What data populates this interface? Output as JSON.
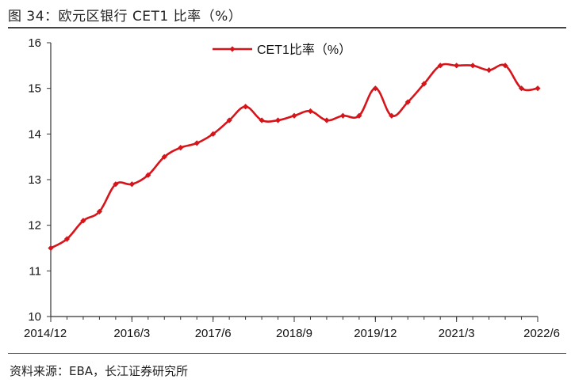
{
  "figure": {
    "title": "图 34：欧元区银行 CET1 比率（%）",
    "source": "资料来源：EBA，长江证券研究所"
  },
  "colors": {
    "series": "#d7141a",
    "axis": "#333333"
  },
  "chart_data": {
    "type": "line",
    "x_tick_labels": [
      "2014/12",
      "2016/3",
      "2017/6",
      "2018/9",
      "2019/12",
      "2021/3",
      "2022/6"
    ],
    "ylim": [
      10,
      16
    ],
    "y_ticks": [
      10,
      11,
      12,
      13,
      14,
      15,
      16
    ],
    "grid": false,
    "legend_position": "top-center",
    "series": [
      {
        "name": "CET1比率（%）",
        "x": [
          "2014/12",
          "2015/3",
          "2015/6",
          "2015/9",
          "2015/12",
          "2016/3",
          "2016/6",
          "2016/9",
          "2016/12",
          "2017/3",
          "2017/6",
          "2017/9",
          "2017/12",
          "2018/3",
          "2018/6",
          "2018/9",
          "2018/12",
          "2019/3",
          "2019/6",
          "2019/9",
          "2019/12",
          "2020/3",
          "2020/6",
          "2020/9",
          "2020/12",
          "2021/3",
          "2021/6",
          "2021/9",
          "2021/12",
          "2022/3",
          "2022/6"
        ],
        "values": [
          11.5,
          11.7,
          12.1,
          12.3,
          12.9,
          12.9,
          13.1,
          13.5,
          13.7,
          13.8,
          14.0,
          14.3,
          14.6,
          14.3,
          14.3,
          14.4,
          14.5,
          14.3,
          14.4,
          14.4,
          15.0,
          14.4,
          14.7,
          15.1,
          15.5,
          15.5,
          15.5,
          15.4,
          15.5,
          15.0,
          15.0
        ]
      }
    ]
  }
}
